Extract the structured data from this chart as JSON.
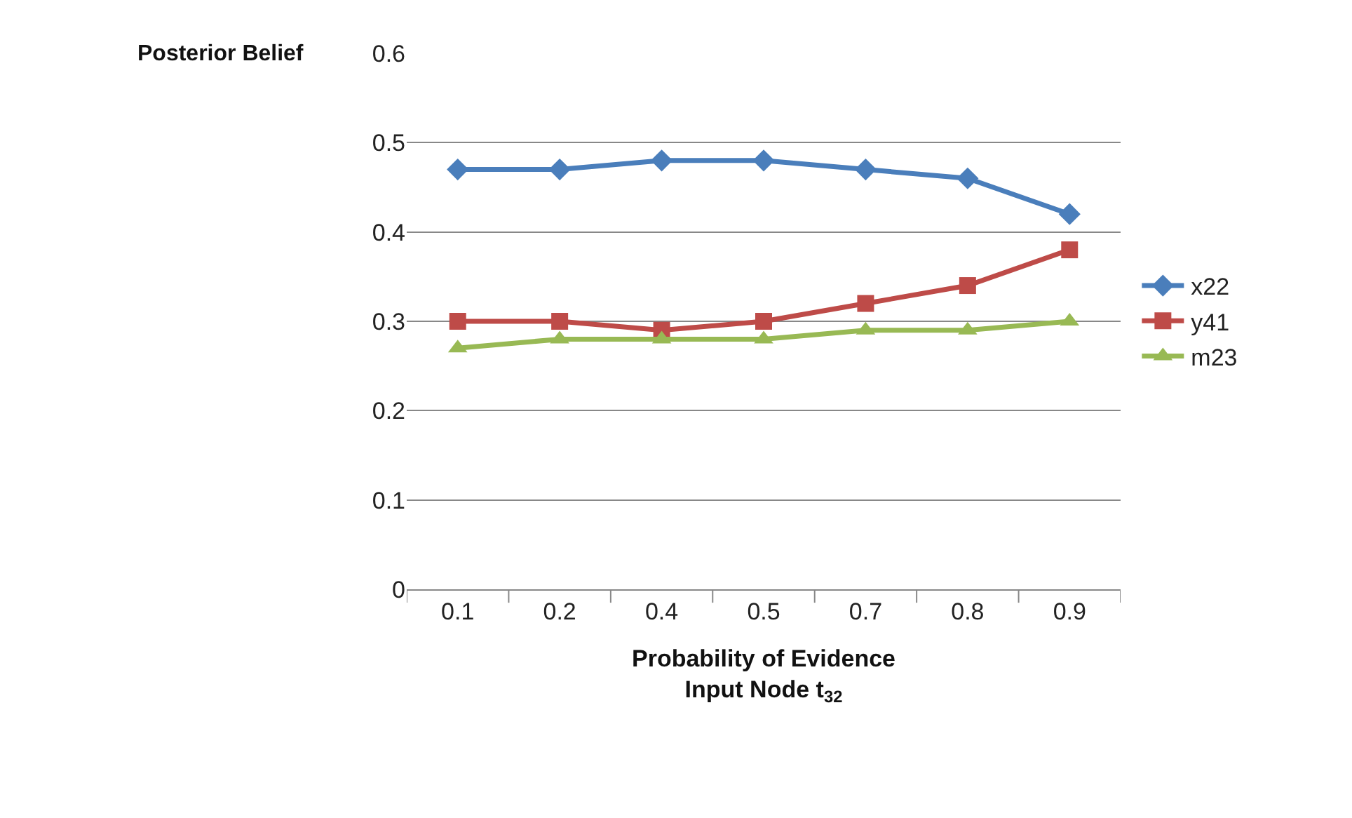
{
  "chart_data": {
    "type": "line",
    "ylabel": "Posterior Belief",
    "xlabel": "Probability of Evidence\nInput Node t$_{32}$",
    "categories": [
      "0.1",
      "0.2",
      "0.4",
      "0.5",
      "0.7",
      "0.8",
      "0.9"
    ],
    "series": [
      {
        "name": "x22",
        "color": "#4a7ebb",
        "marker": "diamond",
        "values": [
          0.47,
          0.47,
          0.48,
          0.48,
          0.47,
          0.46,
          0.42
        ]
      },
      {
        "name": "y41",
        "color": "#be4b48",
        "marker": "square",
        "values": [
          0.3,
          0.3,
          0.29,
          0.3,
          0.32,
          0.34,
          0.38
        ]
      },
      {
        "name": "m23",
        "color": "#98b954",
        "marker": "triangle",
        "values": [
          0.27,
          0.28,
          0.28,
          0.28,
          0.29,
          0.29,
          0.3
        ]
      }
    ],
    "ylim": [
      0,
      0.6
    ],
    "yticks": [
      0,
      0.1,
      0.2,
      0.3,
      0.4,
      0.5,
      0.6
    ],
    "grid": "y",
    "legend": "right",
    "line_style": "solid"
  }
}
